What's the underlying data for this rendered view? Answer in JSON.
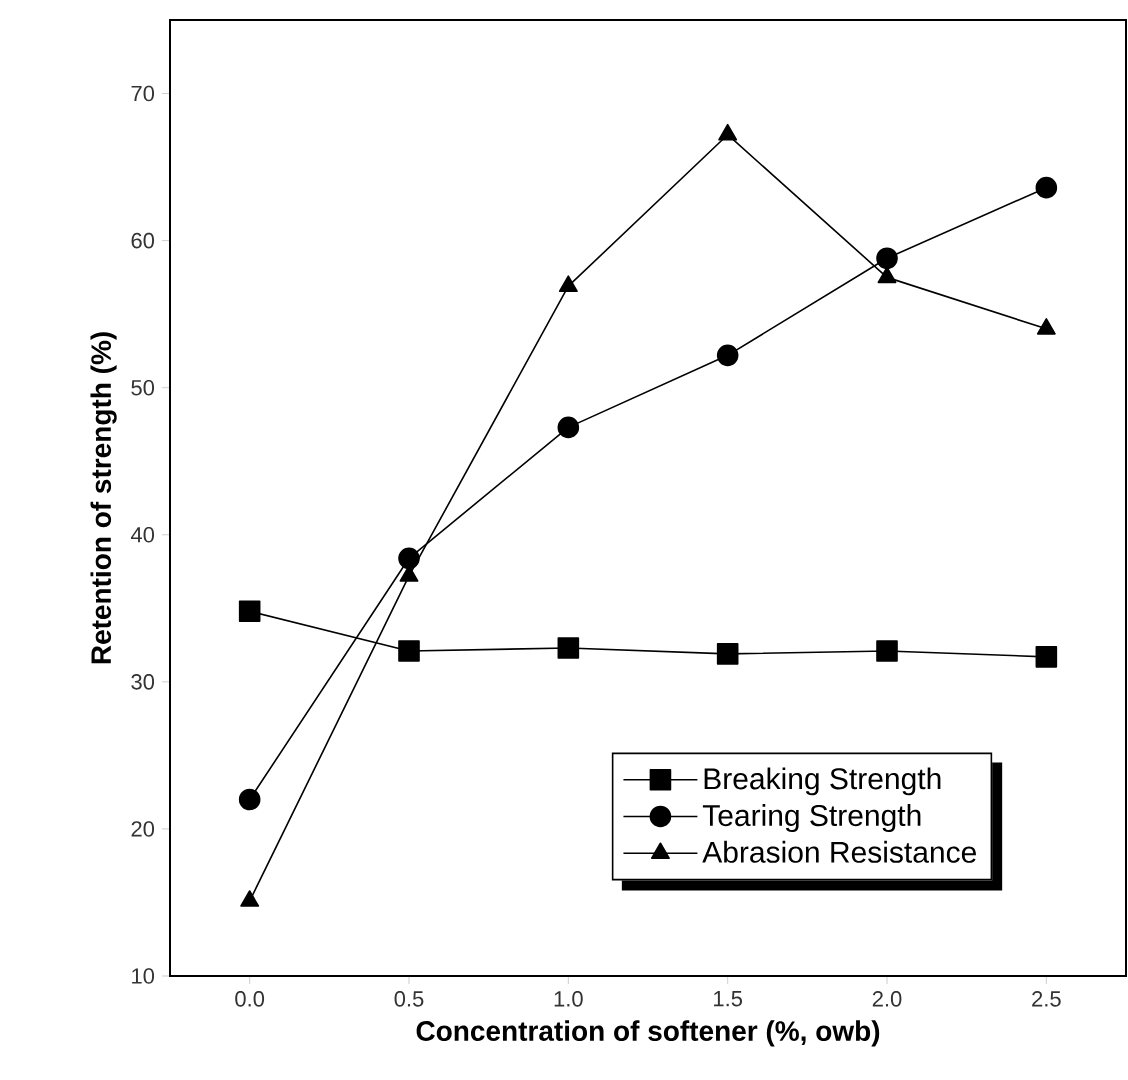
{
  "chart_data": {
    "type": "line",
    "xlabel": "Concentration of softener (%, owb)",
    "ylabel": "Retention of strength (%)",
    "x": [
      0.0,
      0.5,
      1.0,
      1.5,
      2.0,
      2.5
    ],
    "xlim": [
      -0.25,
      2.75
    ],
    "ylim": [
      10,
      75
    ],
    "xticks": [
      {
        "value": 0,
        "label": "0.0"
      },
      {
        "value": 0.5,
        "label": "0.5"
      },
      {
        "value": 1,
        "label": "1.0"
      },
      {
        "value": 1.5,
        "label": "1.5"
      },
      {
        "value": 2,
        "label": "2.0"
      },
      {
        "value": 2.5,
        "label": "2.5"
      }
    ],
    "yticks": [
      10,
      20,
      30,
      40,
      50,
      60,
      70
    ],
    "legend": "bottom right",
    "grid": false,
    "series": [
      {
        "name": "Breaking Strength",
        "color": "#000000",
        "marker": "square",
        "values": [
          34.8,
          32.1,
          32.3,
          31.9,
          32.1,
          31.7
        ]
      },
      {
        "name": "Tearing Strength",
        "color": "#000000",
        "marker": "circle",
        "values": [
          22.0,
          38.4,
          47.3,
          52.2,
          58.8,
          63.6
        ]
      },
      {
        "name": "Abrasion Resistance",
        "color": "#000000",
        "marker": "triangle",
        "values": [
          15.1,
          37.2,
          56.9,
          67.2,
          57.5,
          54.0
        ]
      }
    ]
  }
}
